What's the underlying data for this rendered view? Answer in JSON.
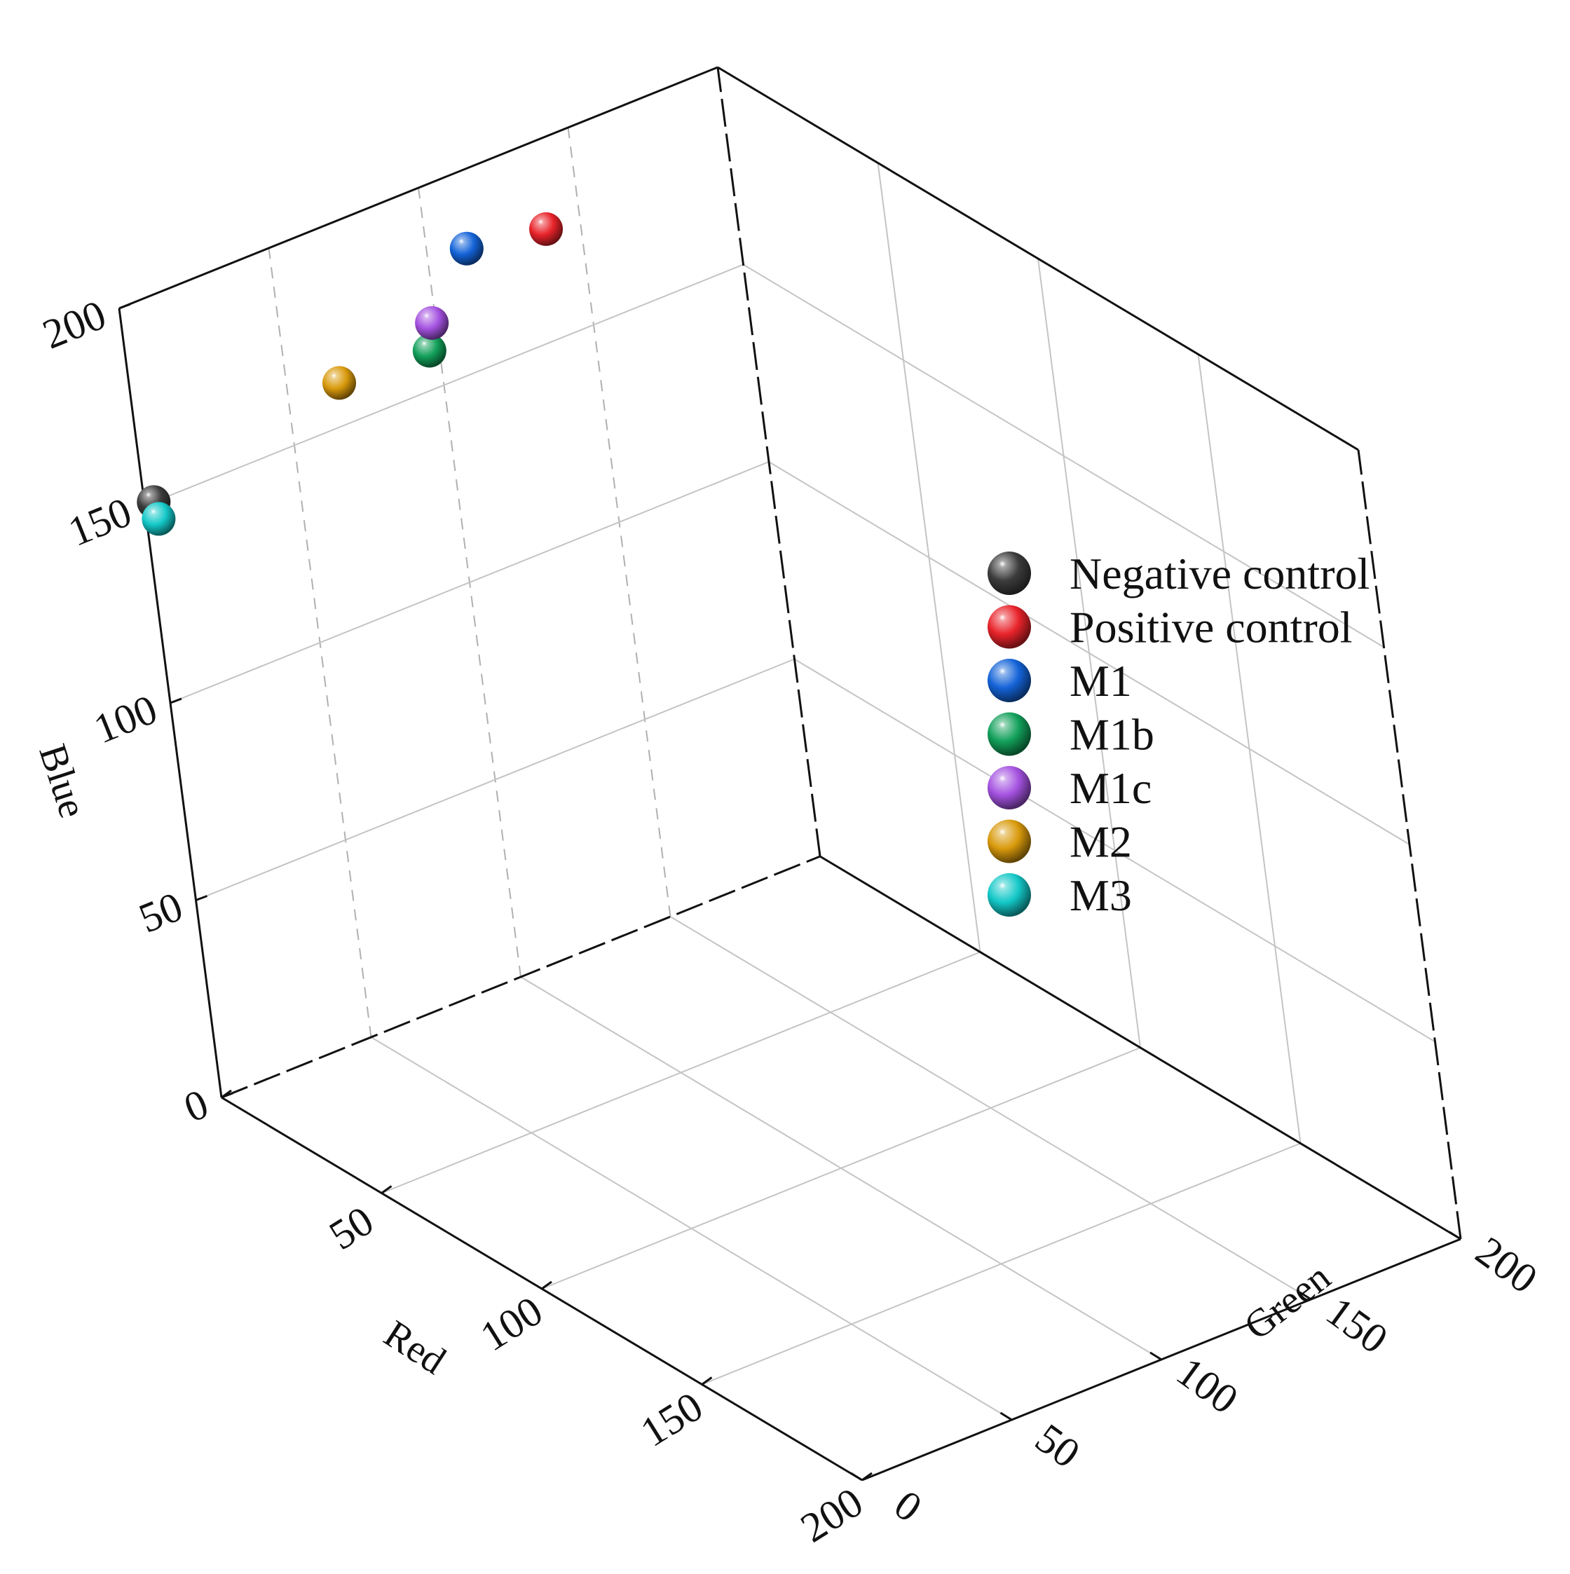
{
  "chart_data": {
    "type": "scatter",
    "projection": "3d",
    "axes": {
      "x": {
        "label": "Red",
        "range": [
          0,
          200
        ],
        "ticks": [
          0,
          50,
          100,
          150,
          200
        ],
        "tick_labels": [
          "0",
          "50",
          "100",
          "150",
          "200"
        ]
      },
      "y": {
        "label": "Green",
        "range": [
          0,
          200
        ],
        "ticks": [
          0,
          50,
          100,
          150,
          200
        ],
        "tick_labels": [
          "0",
          "50",
          "100",
          "150",
          "200"
        ]
      },
      "z": {
        "label": "Blue",
        "range": [
          0,
          200
        ],
        "ticks": [
          0,
          50,
          100,
          150,
          200
        ],
        "tick_labels": [
          "0",
          "50",
          "100",
          "150",
          "200"
        ]
      }
    },
    "grid": true,
    "legend_position": "center-right",
    "series": [
      {
        "name": "Negative control",
        "color": "#3c3c3c",
        "point": [
          0,
          3,
          150
        ]
      },
      {
        "name": "Positive control",
        "color": "#e8232a",
        "point": [
          3,
          136,
          180
        ]
      },
      {
        "name": "M1",
        "color": "#1463d8",
        "point": [
          3,
          110,
          183
        ]
      },
      {
        "name": "M1b",
        "color": "#12a05a",
        "point": [
          3,
          94,
          162
        ]
      },
      {
        "name": "M1c",
        "color": "#a452e0",
        "point": [
          5,
          94,
          170
        ]
      },
      {
        "name": "M2",
        "color": "#d99a0c",
        "point": [
          3,
          64,
          163
        ]
      },
      {
        "name": "M3",
        "color": "#14c8c8",
        "point": [
          2,
          2,
          147
        ]
      }
    ]
  }
}
